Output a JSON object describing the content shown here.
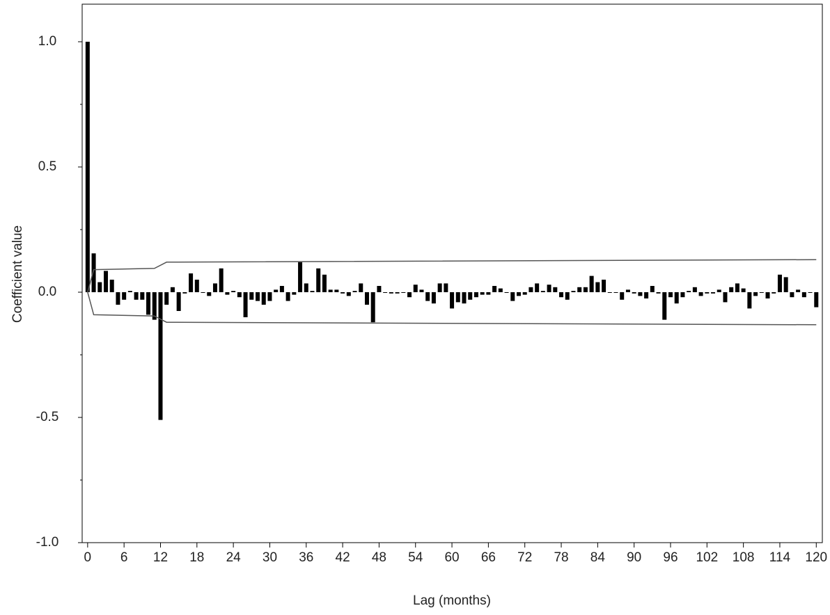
{
  "chart_data": {
    "type": "bar",
    "y_label": "Coefficient value",
    "x_label": "Lag (months)",
    "color": "#000000",
    "band_color": "#555555",
    "x": [
      0,
      1,
      2,
      3,
      4,
      5,
      6,
      7,
      8,
      9,
      10,
      11,
      12,
      13,
      14,
      15,
      16,
      17,
      18,
      19,
      20,
      21,
      22,
      23,
      24,
      25,
      26,
      27,
      28,
      29,
      30,
      31,
      32,
      33,
      34,
      35,
      36,
      37,
      38,
      39,
      40,
      41,
      42,
      43,
      44,
      45,
      46,
      47,
      48,
      49,
      50,
      51,
      52,
      53,
      54,
      55,
      56,
      57,
      58,
      59,
      60,
      61,
      62,
      63,
      64,
      65,
      66,
      67,
      68,
      69,
      70,
      71,
      72,
      73,
      74,
      75,
      76,
      77,
      78,
      79,
      80,
      81,
      82,
      83,
      84,
      85,
      86,
      87,
      88,
      89,
      90,
      91,
      92,
      93,
      94,
      95,
      96,
      97,
      98,
      99,
      100,
      101,
      102,
      103,
      104,
      105,
      106,
      107,
      108,
      109,
      110,
      111,
      112,
      113,
      114,
      115,
      116,
      117,
      118,
      119,
      120
    ],
    "values": [
      1.0,
      0.155,
      0.04,
      0.085,
      0.05,
      -0.05,
      -0.03,
      0.005,
      -0.03,
      -0.03,
      -0.09,
      -0.11,
      -0.51,
      -0.05,
      0.02,
      -0.075,
      -0.005,
      0.075,
      0.05,
      0.0,
      -0.015,
      0.035,
      0.095,
      -0.01,
      0.005,
      -0.02,
      -0.1,
      -0.03,
      -0.035,
      -0.05,
      -0.035,
      0.01,
      0.025,
      -0.035,
      -0.01,
      0.12,
      0.035,
      0.005,
      0.095,
      0.07,
      0.01,
      0.01,
      -0.005,
      -0.015,
      0.005,
      0.035,
      -0.05,
      -0.12,
      0.025,
      0.0,
      -0.005,
      -0.005,
      0.0,
      -0.02,
      0.03,
      0.01,
      -0.035,
      -0.045,
      0.035,
      0.035,
      -0.065,
      -0.04,
      -0.045,
      -0.03,
      -0.02,
      -0.01,
      -0.01,
      0.025,
      0.015,
      0.0,
      -0.035,
      -0.015,
      -0.01,
      0.02,
      0.035,
      0.005,
      0.03,
      0.02,
      -0.02,
      -0.03,
      0.005,
      0.02,
      0.02,
      0.065,
      0.04,
      0.05,
      0.0,
      0.0,
      -0.03,
      0.01,
      -0.005,
      -0.015,
      -0.025,
      0.025,
      -0.005,
      -0.11,
      -0.02,
      -0.045,
      -0.02,
      0.005,
      0.02,
      -0.015,
      -0.005,
      -0.005,
      0.01,
      -0.04,
      0.02,
      0.035,
      0.015,
      -0.065,
      -0.015,
      0.0,
      -0.025,
      -0.005,
      0.07,
      0.06,
      -0.02,
      0.01,
      -0.02,
      0.0,
      -0.06
    ],
    "bands": {
      "x": [
        0,
        1,
        11,
        13,
        120
      ],
      "upper": [
        0,
        0.09,
        0.095,
        0.12,
        0.13
      ],
      "lower": [
        0,
        -0.09,
        -0.095,
        -0.12,
        -0.13
      ]
    },
    "xlim": [
      -0.9,
      121
    ],
    "ylim": [
      -1.0,
      1.15
    ],
    "xticks": [
      0,
      6,
      12,
      18,
      24,
      30,
      36,
      42,
      48,
      54,
      60,
      66,
      72,
      78,
      84,
      90,
      96,
      102,
      108,
      114,
      120
    ],
    "yticks": [
      {
        "value": -1.0,
        "label": "-1.0"
      },
      {
        "value": -0.5,
        "label": "-0.5"
      },
      {
        "value": 0.0,
        "label": "0.0"
      },
      {
        "value": 0.5,
        "label": "0.5"
      },
      {
        "value": 1.0,
        "label": "1.0"
      }
    ],
    "yminor": [
      -0.75,
      -0.25,
      0.25,
      0.75
    ]
  }
}
